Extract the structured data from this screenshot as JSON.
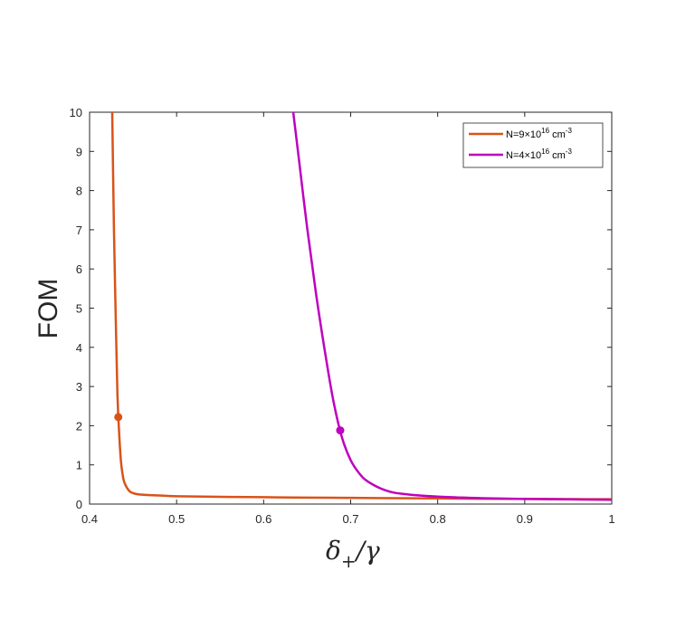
{
  "chart_data": {
    "type": "line",
    "title": "",
    "xlabel": {
      "main": "δ",
      "sub": "+",
      "tail": "/γ"
    },
    "ylabel": "FOM",
    "xlim": [
      0.4,
      1.0
    ],
    "ylim": [
      0,
      10
    ],
    "xticks": [
      "0.4",
      "0.5",
      "0.6",
      "0.7",
      "0.8",
      "0.9",
      "1"
    ],
    "yticks": [
      "0",
      "1",
      "2",
      "3",
      "4",
      "5",
      "6",
      "7",
      "8",
      "9",
      "10"
    ],
    "grid": false,
    "legend_position": "top-right",
    "series": [
      {
        "name": "N=9×10^16 cm^-3",
        "legend": {
          "base": "N=9×10",
          "exp": "16",
          "unit": " cm",
          "unitExp": "-3"
        },
        "color": "#D95319",
        "x": [
          0.426,
          0.428,
          0.43,
          0.432,
          0.434,
          0.436,
          0.438,
          0.44,
          0.445,
          0.45,
          0.46,
          0.48,
          0.5,
          0.55,
          0.6,
          0.65,
          0.7,
          0.75,
          0.8,
          0.85,
          0.9,
          0.95,
          1.0
        ],
        "y": [
          10.0,
          7.0,
          4.8,
          2.8,
          1.8,
          1.1,
          0.75,
          0.55,
          0.35,
          0.28,
          0.24,
          0.22,
          0.2,
          0.185,
          0.175,
          0.165,
          0.158,
          0.15,
          0.143,
          0.137,
          0.132,
          0.127,
          0.123
        ],
        "marker": {
          "x": 0.433,
          "y": 2.22
        }
      },
      {
        "name": "N=4×10^16 cm^-3",
        "legend": {
          "base": "N=4×10",
          "exp": "16",
          "unit": " cm",
          "unitExp": "-3"
        },
        "color": "#BF00BF",
        "x": [
          0.634,
          0.64,
          0.65,
          0.66,
          0.67,
          0.68,
          0.69,
          0.7,
          0.71,
          0.72,
          0.74,
          0.76,
          0.8,
          0.85,
          0.9,
          0.95,
          1.0
        ],
        "y": [
          10.0,
          8.9,
          7.05,
          5.4,
          3.95,
          2.65,
          1.7,
          1.12,
          0.78,
          0.57,
          0.35,
          0.26,
          0.19,
          0.15,
          0.13,
          0.12,
          0.11
        ],
        "marker": {
          "x": 0.688,
          "y": 1.88
        }
      }
    ]
  }
}
